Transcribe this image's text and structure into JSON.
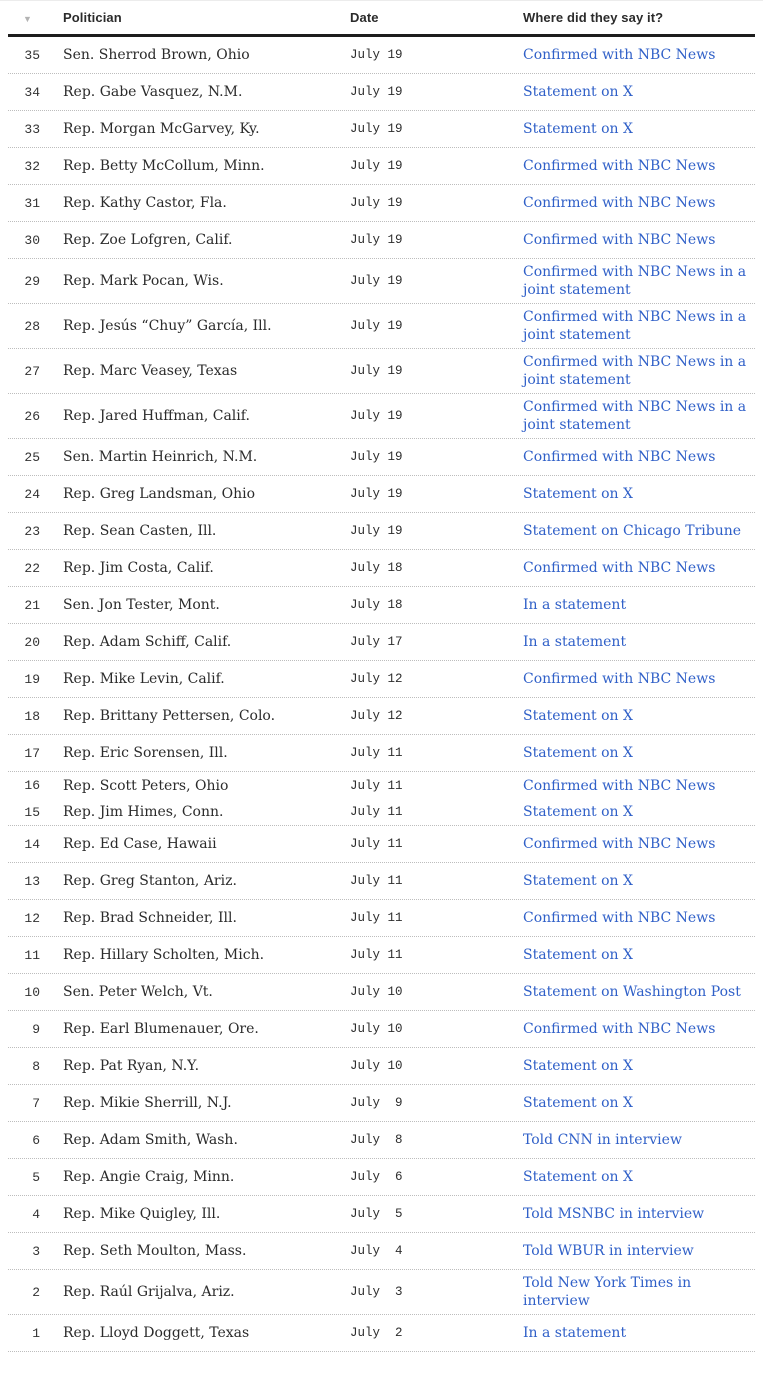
{
  "colors": {
    "link_blue": "#3060c8",
    "text_dark": "#2b2b2b",
    "divider": "#bdbdbd",
    "header_rule": "#1d1d1d",
    "sort_arrow": "#b3b3b3"
  },
  "chart_data": {
    "type": "table",
    "sort_icon": "▼",
    "columns": [
      "",
      "Politician",
      "Date",
      "Where did they say it?"
    ],
    "rows": [
      {
        "num": "35",
        "name": "Sen. Sherrod Brown, Ohio",
        "date": "July 19",
        "where": "Confirmed with NBC News"
      },
      {
        "num": "34",
        "name": "Rep. Gabe Vasquez, N.M.",
        "date": "July 19",
        "where": "Statement on X"
      },
      {
        "num": "33",
        "name": "Rep. Morgan McGarvey, Ky.",
        "date": "July 19",
        "where": "Statement on X"
      },
      {
        "num": "32",
        "name": "Rep. Betty McCollum, Minn.",
        "date": "July 19",
        "where": "Confirmed with NBC News"
      },
      {
        "num": "31",
        "name": "Rep. Kathy Castor, Fla.",
        "date": "July 19",
        "where": "Confirmed with NBC News"
      },
      {
        "num": "30",
        "name": "Rep. Zoe Lofgren, Calif.",
        "date": "July 19",
        "where": "Confirmed with NBC News"
      },
      {
        "num": "29",
        "name": "Rep. Mark Pocan, Wis.",
        "date": "July 19",
        "where": "Confirmed with NBC News in a joint statement"
      },
      {
        "num": "28",
        "name": "Rep. Jesús “Chuy” García, Ill.",
        "date": "July 19",
        "where": "Confirmed with NBC News in a joint statement"
      },
      {
        "num": "27",
        "name": "Rep. Marc Veasey, Texas",
        "date": "July 19",
        "where": "Confirmed with NBC News in a joint statement"
      },
      {
        "num": "26",
        "name": "Rep. Jared Huffman, Calif.",
        "date": "July 19",
        "where": "Confirmed with NBC News in a joint statement"
      },
      {
        "num": "25",
        "name": "Sen. Martin Heinrich, N.M.",
        "date": "July 19",
        "where": "Confirmed with NBC News"
      },
      {
        "num": "24",
        "name": "Rep. Greg Landsman, Ohio",
        "date": "July 19",
        "where": "Statement on X"
      },
      {
        "num": "23",
        "name": "Rep. Sean Casten, Ill.",
        "date": "July 19",
        "where": "Statement on Chicago Tribune"
      },
      {
        "num": "22",
        "name": "Rep. Jim Costa, Calif.",
        "date": "July 18",
        "where": "Confirmed with NBC News"
      },
      {
        "num": "21",
        "name": "Sen. Jon Tester, Mont.",
        "date": "July 18",
        "where": "In a statement"
      },
      {
        "num": "20",
        "name": "Rep. Adam Schiff, Calif.",
        "date": "July 17",
        "where": "In a statement"
      },
      {
        "num": "19",
        "name": "Rep. Mike Levin, Calif.",
        "date": "July 12",
        "where": "Confirmed with NBC News"
      },
      {
        "num": "18",
        "name": "Rep. Brittany Pettersen, Colo.",
        "date": "July 12",
        "where": "Statement on X"
      },
      {
        "num": "17",
        "name": "Rep. Eric Sorensen, Ill.",
        "date": "July 11",
        "where": "Statement on X"
      },
      {
        "num": "16",
        "name": "Rep. Scott Peters, Ohio",
        "date": "July 11",
        "where": "Confirmed with NBC News",
        "tight": true,
        "no_divider": true
      },
      {
        "num": "15",
        "name": "Rep. Jim Himes, Conn.",
        "date": "July 11",
        "where": "Statement on X",
        "tight": true
      },
      {
        "num": "14",
        "name": "Rep. Ed Case, Hawaii",
        "date": "July 11",
        "where": "Confirmed with NBC News"
      },
      {
        "num": "13",
        "name": "Rep. Greg Stanton, Ariz.",
        "date": "July 11",
        "where": "Statement on X"
      },
      {
        "num": "12",
        "name": "Rep. Brad Schneider, Ill.",
        "date": "July 11",
        "where": "Confirmed with NBC News"
      },
      {
        "num": "11",
        "name": "Rep. Hillary Scholten, Mich.",
        "date": "July 11",
        "where": "Statement on X"
      },
      {
        "num": "10",
        "name": "Sen. Peter Welch, Vt.",
        "date": "July 10",
        "where": "Statement on Washington Post"
      },
      {
        "num": "9",
        "name": "Rep. Earl Blumenauer, Ore.",
        "date": "July 10",
        "where": "Confirmed with NBC News"
      },
      {
        "num": "8",
        "name": "Rep. Pat Ryan, N.Y.",
        "date": "July 10",
        "where": "Statement on X"
      },
      {
        "num": "7",
        "name": "Rep. Mikie Sherrill, N.J.",
        "date": "July  9",
        "where": "Statement on X"
      },
      {
        "num": "6",
        "name": "Rep. Adam Smith, Wash.",
        "date": "July  8",
        "where": "Told CNN in interview"
      },
      {
        "num": "5",
        "name": "Rep. Angie Craig, Minn.",
        "date": "July  6",
        "where": "Statement on X"
      },
      {
        "num": "4",
        "name": "Rep. Mike Quigley, Ill.",
        "date": "July  5",
        "where": "Told MSNBC in interview"
      },
      {
        "num": "3",
        "name": "Rep. Seth Moulton, Mass.",
        "date": "July  4",
        "where": "Told WBUR in interview"
      },
      {
        "num": "2",
        "name": "Rep. Raúl Grijalva, Ariz.",
        "date": "July  3",
        "where": "Told New York Times in interview"
      },
      {
        "num": "1",
        "name": "Rep. Lloyd Doggett, Texas",
        "date": "July  2",
        "where": "In a statement"
      }
    ]
  }
}
